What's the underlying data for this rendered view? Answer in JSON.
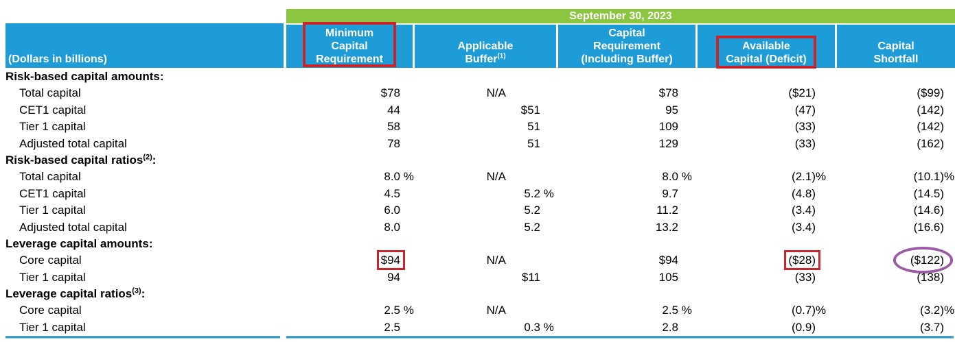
{
  "table": {
    "date_header": "September 30, 2023",
    "corner_label": "(Dollars in billions)",
    "columns": [
      {
        "lines": [
          "Minimum",
          "Capital",
          "Requirement"
        ],
        "sup": "",
        "annot": "red-box"
      },
      {
        "lines": [
          "Applicable",
          "Buffer"
        ],
        "sup": "(1)",
        "annot": ""
      },
      {
        "lines": [
          "Capital",
          "Requirement",
          "(Including Buffer)"
        ],
        "sup": "",
        "annot": ""
      },
      {
        "lines": [
          "Available",
          "Capital (Deficit)"
        ],
        "sup": "",
        "annot": "red-box"
      },
      {
        "lines": [
          "Capital",
          "Shortfall"
        ],
        "sup": "",
        "annot": ""
      }
    ],
    "rows": [
      {
        "type": "section",
        "label": "Risk-based capital amounts",
        "sup": "",
        "suffix": ":"
      },
      {
        "type": "data",
        "label": "Total capital",
        "cells": [
          {
            "v": "$78"
          },
          {
            "v": "N/A",
            "na": true
          },
          {
            "v": "$78"
          },
          {
            "v": "($21)"
          },
          {
            "v": "($99)"
          }
        ]
      },
      {
        "type": "data",
        "label": "CET1 capital",
        "cells": [
          {
            "v": "44"
          },
          {
            "v": "$51"
          },
          {
            "v": "95"
          },
          {
            "v": "(47)"
          },
          {
            "v": "(142)"
          }
        ]
      },
      {
        "type": "data",
        "label": "Tier 1 capital",
        "cells": [
          {
            "v": "58"
          },
          {
            "v": "51"
          },
          {
            "v": "109"
          },
          {
            "v": "(33)"
          },
          {
            "v": "(142)"
          }
        ]
      },
      {
        "type": "data",
        "label": "Adjusted total capital",
        "cells": [
          {
            "v": "78"
          },
          {
            "v": "51"
          },
          {
            "v": "129"
          },
          {
            "v": "(33)"
          },
          {
            "v": "(162)"
          }
        ]
      },
      {
        "type": "section",
        "label": "Risk-based capital ratios",
        "sup": "(2)",
        "suffix": ":"
      },
      {
        "type": "data",
        "label": "Total capital",
        "cells": [
          {
            "v": "8.0",
            "s": " %"
          },
          {
            "v": "N/A",
            "na": true
          },
          {
            "v": "8.0",
            "s": " %"
          },
          {
            "v": "(2.1)",
            "s": "%"
          },
          {
            "v": "(10.1)",
            "s": "%"
          }
        ]
      },
      {
        "type": "data",
        "label": "CET1 capital",
        "cells": [
          {
            "v": "4.5"
          },
          {
            "v": "5.2",
            "s": " %"
          },
          {
            "v": "9.7"
          },
          {
            "v": "(4.8)"
          },
          {
            "v": "(14.5)"
          }
        ]
      },
      {
        "type": "data",
        "label": "Tier 1 capital",
        "cells": [
          {
            "v": "6.0"
          },
          {
            "v": "5.2"
          },
          {
            "v": "11.2"
          },
          {
            "v": "(3.4)"
          },
          {
            "v": "(14.6)"
          }
        ]
      },
      {
        "type": "data",
        "label": "Adjusted total capital",
        "cells": [
          {
            "v": "8.0"
          },
          {
            "v": "5.2"
          },
          {
            "v": "13.2"
          },
          {
            "v": "(3.4)"
          },
          {
            "v": "(16.6)"
          }
        ]
      },
      {
        "type": "section",
        "label": "Leverage capital amounts",
        "sup": "",
        "suffix": ":"
      },
      {
        "type": "data",
        "label": "Core capital",
        "cells": [
          {
            "v": "$94",
            "annot": "red-box"
          },
          {
            "v": "N/A",
            "na": true
          },
          {
            "v": "$94"
          },
          {
            "v": "($28)",
            "annot": "red-box"
          },
          {
            "v": "($122)",
            "annot": "purple-ellipse"
          }
        ]
      },
      {
        "type": "data",
        "label": "Tier 1 capital",
        "cells": [
          {
            "v": "94"
          },
          {
            "v": "$11"
          },
          {
            "v": "105"
          },
          {
            "v": "(33)"
          },
          {
            "v": "(138)"
          }
        ]
      },
      {
        "type": "section",
        "label": "Leverage capital ratios",
        "sup": "(3)",
        "suffix": ":"
      },
      {
        "type": "data",
        "label": "Core capital",
        "cells": [
          {
            "v": "2.5",
            "s": " %"
          },
          {
            "v": "N/A",
            "na": true
          },
          {
            "v": "2.5",
            "s": " %"
          },
          {
            "v": "(0.7)",
            "s": "%"
          },
          {
            "v": "(3.2)",
            "s": "%"
          }
        ]
      },
      {
        "type": "data",
        "label": "Tier 1 capital",
        "cells": [
          {
            "v": "2.5"
          },
          {
            "v": "0.3",
            "s": " %"
          },
          {
            "v": "2.8"
          },
          {
            "v": "(0.9)"
          },
          {
            "v": "(3.7)"
          }
        ]
      }
    ]
  },
  "colors": {
    "band_green": "#8CC540",
    "header_blue": "#1E9CD7",
    "annotation_red": "#C9242B",
    "annotation_purple": "#9C59A4",
    "bottom_rule_blue": "#2F8FB8"
  }
}
